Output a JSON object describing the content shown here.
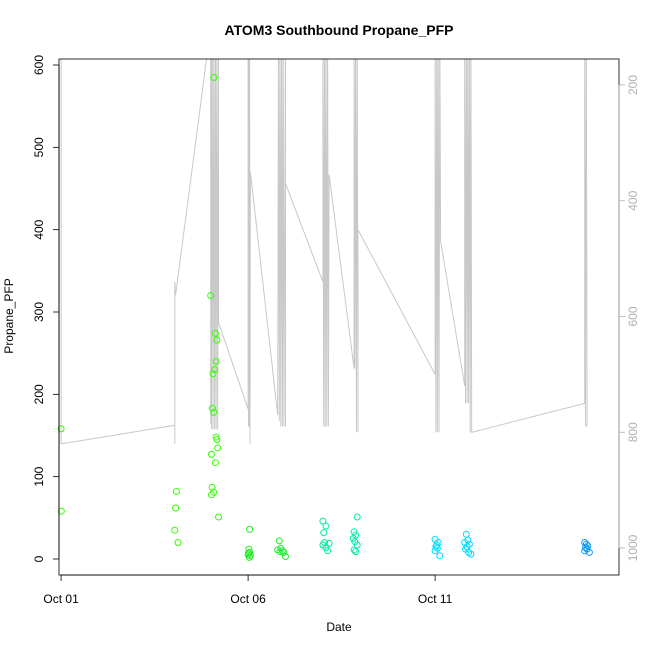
{
  "chart_data": {
    "type": "scatter",
    "title": "ATOM3 Southbound Propane_PFP",
    "xlabel": "Date",
    "ylabel": "Propane_PFP",
    "x_ticks": [
      "Oct 01",
      "Oct 06",
      "Oct 11"
    ],
    "x_tick_dates": [
      "2017-10-01",
      "2017-10-06",
      "2017-10-11"
    ],
    "ylim": [
      0,
      600
    ],
    "y_ticks": [
      "0",
      "100",
      "200",
      "300",
      "400",
      "500",
      "600"
    ],
    "right_axis": {
      "ticks": [
        "200",
        "400",
        "600",
        "800",
        "1000"
      ],
      "range": [
        100,
        1020
      ],
      "inverted": true,
      "color": "#b0b0b0"
    },
    "grid": false,
    "colors": {
      "point_green": "#33ff00",
      "point_teal": "#00ee99",
      "point_cyan": "#00ddff",
      "point_blue": "#1199ee",
      "pressure_line": "#c8c8c8"
    },
    "series": [
      {
        "points": [
          [
            "2017-10-01 00:00",
            158,
            "#33ff00"
          ],
          [
            "2017-10-01 00:10",
            58,
            "#33ff00"
          ],
          [
            "2017-10-04 02:00",
            82,
            "#33ff00"
          ],
          [
            "2017-10-04 01:30",
            62,
            "#33ff00"
          ],
          [
            "2017-10-04 01:00",
            35,
            "#33ff00"
          ],
          [
            "2017-10-04 03:00",
            20,
            "#33ff00"
          ],
          [
            "2017-10-05 00:00",
            320,
            "#33ff00"
          ],
          [
            "2017-10-05 02:00",
            585,
            "#33ff00"
          ],
          [
            "2017-10-05 03:00",
            274,
            "#33ff00"
          ],
          [
            "2017-10-05 04:00",
            266,
            "#33ff00"
          ],
          [
            "2017-10-05 03:30",
            240,
            "#33ff00"
          ],
          [
            "2017-10-05 02:30",
            230,
            "#33ff00"
          ],
          [
            "2017-10-05 01:30",
            225,
            "#33ff00"
          ],
          [
            "2017-10-05 01:00",
            183,
            "#33ff00"
          ],
          [
            "2017-10-05 02:00",
            178,
            "#33ff00"
          ],
          [
            "2017-10-05 03:30",
            148,
            "#33ff00"
          ],
          [
            "2017-10-05 04:00",
            145,
            "#33ff00"
          ],
          [
            "2017-10-05 04:30",
            135,
            "#33ff00"
          ],
          [
            "2017-10-05 00:30",
            127,
            "#33ff00"
          ],
          [
            "2017-10-05 03:00",
            117,
            "#33ff00"
          ],
          [
            "2017-10-05 01:00",
            87,
            "#33ff00"
          ],
          [
            "2017-10-05 02:00",
            81,
            "#33ff00"
          ],
          [
            "2017-10-05 00:30",
            78,
            "#33ff00"
          ],
          [
            "2017-10-05 05:00",
            51,
            "#33ff00"
          ],
          [
            "2017-10-06 01:00",
            36,
            "#22ee22"
          ],
          [
            "2017-10-06 00:30",
            12,
            "#22ee22"
          ],
          [
            "2017-10-06 01:00",
            8,
            "#22ee22"
          ],
          [
            "2017-10-06 00:00",
            5,
            "#22ee22"
          ],
          [
            "2017-10-06 01:30",
            4,
            "#22ee22"
          ],
          [
            "2017-10-06 00:45",
            2,
            "#22ee22"
          ],
          [
            "2017-10-06 00:15",
            7,
            "#22ee22"
          ],
          [
            "2017-10-06 20:00",
            22,
            "#22ee33"
          ],
          [
            "2017-10-06 21:00",
            13,
            "#22ee33"
          ],
          [
            "2017-10-06 19:00",
            11,
            "#22ee33"
          ],
          [
            "2017-10-06 22:00",
            10,
            "#22ee33"
          ],
          [
            "2017-10-06 20:30",
            9,
            "#22ee33"
          ],
          [
            "2017-10-06 23:00",
            8,
            "#22ee33"
          ],
          [
            "2017-10-07 00:00",
            3,
            "#22ee33"
          ],
          [
            "2017-10-08 00:00",
            46,
            "#00ee99"
          ],
          [
            "2017-10-08 02:00",
            40,
            "#00ee99"
          ],
          [
            "2017-10-08 00:30",
            32,
            "#00ee99"
          ],
          [
            "2017-10-08 01:00",
            20,
            "#00ee99"
          ],
          [
            "2017-10-08 04:00",
            19,
            "#00ee99"
          ],
          [
            "2017-10-08 00:00",
            17,
            "#00ee99"
          ],
          [
            "2017-10-08 02:00",
            14,
            "#00ee99"
          ],
          [
            "2017-10-08 03:00",
            10,
            "#00ee99"
          ],
          [
            "2017-10-08 22:00",
            51,
            "#00eeaa"
          ],
          [
            "2017-10-08 20:00",
            33,
            "#00eeaa"
          ],
          [
            "2017-10-08 21:00",
            29,
            "#00eeaa"
          ],
          [
            "2017-10-08 19:30",
            25,
            "#00eeaa"
          ],
          [
            "2017-10-08 20:30",
            21,
            "#00eeaa"
          ],
          [
            "2017-10-08 22:00",
            17,
            "#00eeaa"
          ],
          [
            "2017-10-08 20:00",
            11,
            "#00eeaa"
          ],
          [
            "2017-10-08 21:00",
            9,
            "#00eeaa"
          ],
          [
            "2017-10-11 00:00",
            24,
            "#00ddff"
          ],
          [
            "2017-10-11 02:00",
            20,
            "#00ddff"
          ],
          [
            "2017-10-11 01:00",
            17,
            "#00ddff"
          ],
          [
            "2017-10-11 00:30",
            15,
            "#00ddff"
          ],
          [
            "2017-10-11 01:30",
            13,
            "#00ddff"
          ],
          [
            "2017-10-11 00:00",
            10,
            "#00ddff"
          ],
          [
            "2017-10-11 03:00",
            4,
            "#00ddff"
          ],
          [
            "2017-10-11 20:00",
            30,
            "#00ddff"
          ],
          [
            "2017-10-11 21:00",
            23,
            "#00ddff"
          ],
          [
            "2017-10-11 19:00",
            20,
            "#00ddff"
          ],
          [
            "2017-10-11 22:00",
            18,
            "#00ddff"
          ],
          [
            "2017-10-11 20:30",
            15,
            "#00ddff"
          ],
          [
            "2017-10-11 19:30",
            12,
            "#00ddff"
          ],
          [
            "2017-10-11 21:30",
            8,
            "#00ddff"
          ],
          [
            "2017-10-11 23:00",
            6,
            "#00ddff"
          ],
          [
            "2017-10-15 00:00",
            20,
            "#1199ee"
          ],
          [
            "2017-10-15 01:00",
            18,
            "#1199ee"
          ],
          [
            "2017-10-15 02:00",
            16,
            "#1199ee"
          ],
          [
            "2017-10-15 00:30",
            14,
            "#1199ee"
          ],
          [
            "2017-10-15 01:30",
            12,
            "#1199ee"
          ],
          [
            "2017-10-15 00:00",
            10,
            "#1199ee"
          ],
          [
            "2017-10-15 03:00",
            8,
            "#1199ee"
          ]
        ]
      }
    ],
    "pressure_trace": [
      [
        "2017-10-01 00:00",
        100
      ],
      [
        "2017-10-01 00:00",
        820
      ],
      [
        "2017-10-01 00:30",
        820
      ],
      [
        "2017-10-04 01:00",
        788
      ],
      [
        "2017-10-04 01:00",
        540
      ],
      [
        "2017-10-04 01:00",
        820
      ],
      [
        "2017-10-04 01:00",
        540
      ],
      [
        "2017-10-04 01:00",
        540
      ],
      [
        "2017-10-04 01:30",
        563
      ],
      [
        "2017-10-05 00:00",
        100
      ],
      [
        "2017-10-05 00:00",
        785
      ],
      [
        "2017-10-05 00:15",
        100
      ],
      [
        "2017-10-05 00:30",
        795
      ],
      [
        "2017-10-05 01:00",
        100
      ],
      [
        "2017-10-05 01:30",
        795
      ],
      [
        "2017-10-05 02:00",
        100
      ],
      [
        "2017-10-05 02:30",
        795
      ],
      [
        "2017-10-05 03:00",
        100
      ],
      [
        "2017-10-05 03:30",
        795
      ],
      [
        "2017-10-05 04:00",
        100
      ],
      [
        "2017-10-05 04:30",
        795
      ],
      [
        "2017-10-05 05:00",
        100
      ],
      [
        "2017-10-05 05:00",
        610
      ],
      [
        "2017-10-06 00:00",
        760
      ],
      [
        "2017-10-06 00:00",
        100
      ],
      [
        "2017-10-06 00:15",
        790
      ],
      [
        "2017-10-06 00:30",
        100
      ],
      [
        "2017-10-06 00:45",
        790
      ],
      [
        "2017-10-06 01:00",
        100
      ],
      [
        "2017-10-06 01:15",
        820
      ],
      [
        "2017-10-06 01:30",
        350
      ],
      [
        "2017-10-06 19:00",
        770
      ],
      [
        "2017-10-06 19:30",
        100
      ],
      [
        "2017-10-06 20:00",
        780
      ],
      [
        "2017-10-06 20:30",
        100
      ],
      [
        "2017-10-06 21:00",
        790
      ],
      [
        "2017-10-06 21:30",
        100
      ],
      [
        "2017-10-06 22:00",
        790
      ],
      [
        "2017-10-06 22:30",
        100
      ],
      [
        "2017-10-06 23:00",
        790
      ],
      [
        "2017-10-07 00:00",
        100
      ],
      [
        "2017-10-07 00:00",
        790
      ],
      [
        "2017-10-07 00:00",
        370
      ],
      [
        "2017-10-08 00:00",
        540
      ],
      [
        "2017-10-08 00:00",
        100
      ],
      [
        "2017-10-08 00:30",
        790
      ],
      [
        "2017-10-08 01:00",
        100
      ],
      [
        "2017-10-08 01:30",
        790
      ],
      [
        "2017-10-08 02:00",
        100
      ],
      [
        "2017-10-08 02:30",
        790
      ],
      [
        "2017-10-08 03:00",
        100
      ],
      [
        "2017-10-08 03:30",
        790
      ],
      [
        "2017-10-08 04:00",
        355
      ],
      [
        "2017-10-08 20:00",
        690
      ],
      [
        "2017-10-08 20:00",
        100
      ],
      [
        "2017-10-08 20:30",
        690
      ],
      [
        "2017-10-08 21:00",
        100
      ],
      [
        "2017-10-08 21:30",
        800
      ],
      [
        "2017-10-08 22:00",
        100
      ],
      [
        "2017-10-08 22:30",
        800
      ],
      [
        "2017-10-08 22:30",
        450
      ],
      [
        "2017-10-11 00:00",
        700
      ],
      [
        "2017-10-11 00:00",
        100
      ],
      [
        "2017-10-11 00:30",
        800
      ],
      [
        "2017-10-11 01:00",
        100
      ],
      [
        "2017-10-11 01:30",
        800
      ],
      [
        "2017-10-11 02:00",
        100
      ],
      [
        "2017-10-11 02:30",
        800
      ],
      [
        "2017-10-11 03:00",
        100
      ],
      [
        "2017-10-11 03:30",
        470
      ],
      [
        "2017-10-11 19:00",
        720
      ],
      [
        "2017-10-11 19:00",
        100
      ],
      [
        "2017-10-11 19:30",
        750
      ],
      [
        "2017-10-11 20:00",
        100
      ],
      [
        "2017-10-11 20:30",
        750
      ],
      [
        "2017-10-11 21:00",
        100
      ],
      [
        "2017-10-11 21:30",
        750
      ],
      [
        "2017-10-11 22:00",
        100
      ],
      [
        "2017-10-11 22:30",
        800
      ],
      [
        "2017-10-11 23:00",
        100
      ],
      [
        "2017-10-11 23:30",
        800
      ],
      [
        "2017-10-15 00:00",
        750
      ],
      [
        "2017-10-15 00:00",
        100
      ],
      [
        "2017-10-15 00:30",
        790
      ],
      [
        "2017-10-15 01:00",
        100
      ],
      [
        "2017-10-15 01:30",
        790
      ]
    ]
  }
}
